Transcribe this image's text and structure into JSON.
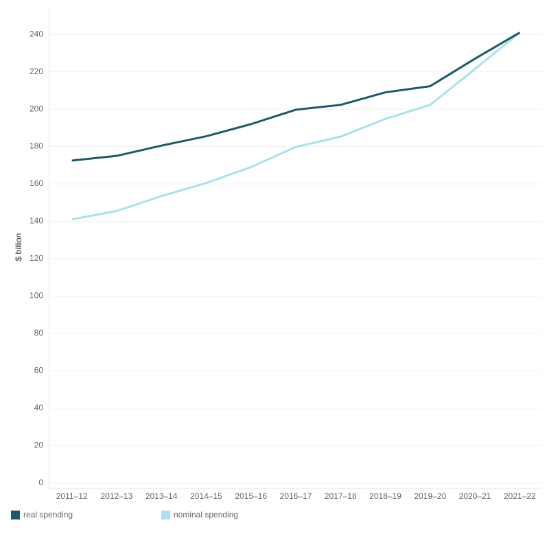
{
  "chart_data": {
    "type": "line",
    "categories": [
      "2011–12",
      "2012–13",
      "2013–14",
      "2014–15",
      "2015–16",
      "2016–17",
      "2017–18",
      "2018–19",
      "2019–20",
      "2020–21",
      "2021–22"
    ],
    "series": [
      {
        "name": "real spending",
        "color": "#1a5a6b",
        "values": [
          172.5,
          175,
          180.5,
          185.5,
          192,
          199.7,
          202.3,
          209,
          212.3,
          227,
          241
        ]
      },
      {
        "name": "nominal spending",
        "color": "#a8e2ee",
        "values": [
          141,
          145.5,
          153.5,
          160.5,
          169,
          179.8,
          185.3,
          194.8,
          202.3,
          221.5,
          241
        ]
      }
    ],
    "y_label": "$ billion",
    "ylim": [
      -3,
      254
    ],
    "yticks": [
      0,
      20,
      40,
      60,
      80,
      100,
      120,
      140,
      160,
      180,
      200,
      220,
      240
    ],
    "grid": true
  }
}
